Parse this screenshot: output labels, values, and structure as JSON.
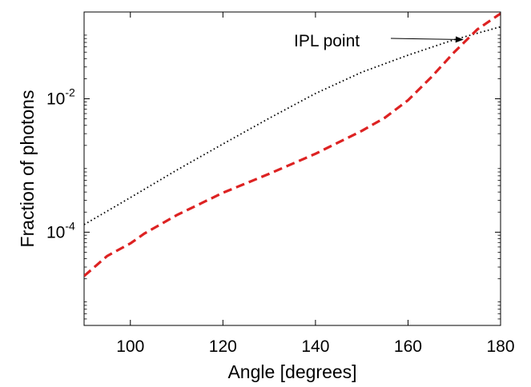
{
  "chart_data": {
    "type": "line",
    "title": "",
    "xlabel": "Angle [degrees]",
    "ylabel": "Fraction of photons",
    "xlim": [
      90,
      180
    ],
    "ylim": [
      4e-06,
      0.2
    ],
    "yscale": "log",
    "grid": false,
    "legend": "none",
    "xticks": [
      100,
      120,
      140,
      160,
      180
    ],
    "yticks": [
      {
        "value": 0.0001,
        "base": "10",
        "exp": "-4"
      },
      {
        "value": 0.01,
        "base": "10",
        "exp": "-2"
      }
    ],
    "series": [
      {
        "color": "#000000",
        "style": "dotted",
        "x": [
          90,
          100,
          110,
          120,
          130,
          140,
          150,
          160,
          170,
          180
        ],
        "y": [
          0.00013,
          0.00033,
          0.00085,
          0.0021,
          0.0051,
          0.012,
          0.025,
          0.045,
          0.077,
          0.12
        ]
      },
      {
        "color": "#dd2222",
        "style": "dashed",
        "x": [
          90,
          95,
          100,
          103,
          110,
          120,
          130,
          140,
          150,
          155,
          160,
          165,
          170,
          175,
          180
        ],
        "y": [
          2.2e-05,
          4.4e-05,
          6.8e-05,
          9.5e-05,
          0.00018,
          0.00039,
          0.00075,
          0.0015,
          0.0033,
          0.0052,
          0.0095,
          0.021,
          0.05,
          0.11,
          0.19
        ]
      }
    ],
    "annotations": [
      {
        "text": "IPL point",
        "x": 172,
        "y": 0.075
      }
    ]
  }
}
